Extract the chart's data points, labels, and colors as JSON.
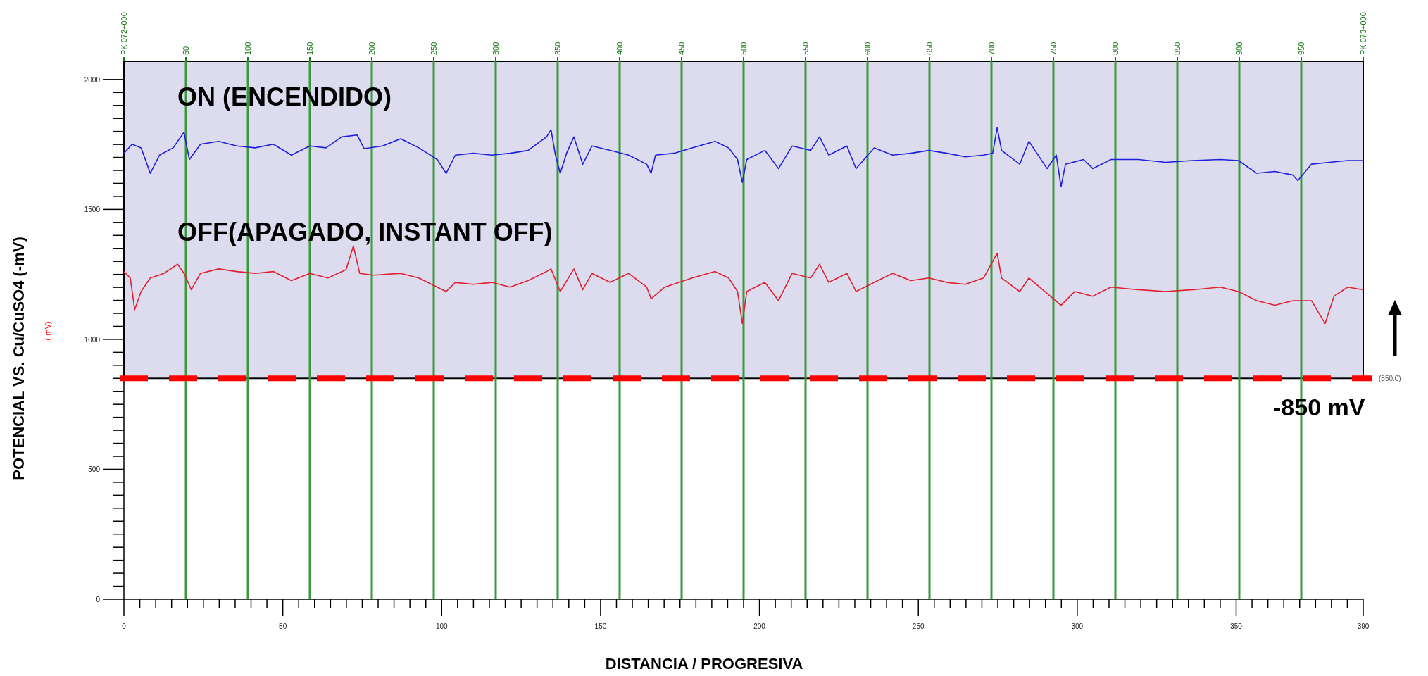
{
  "chart_data": {
    "type": "line",
    "xlabel": "DISTANCIA / PROGRESIVA",
    "ylabel": "POTENCIAL VS. Cu/CuSO4 (-mV)",
    "xlim": [
      0,
      390
    ],
    "ylim": [
      0,
      2070
    ],
    "xticks": [
      0,
      {
        "value": 5,
        "label": null
      },
      {
        "value": 10,
        "label": null
      },
      {
        "value": 15,
        "label": null
      },
      {
        "value": 20,
        "label": null
      },
      {
        "value": 25,
        "label": null
      },
      {
        "value": 30,
        "label": null
      },
      {
        "value": 35,
        "label": null
      },
      {
        "value": 40,
        "label": null
      },
      {
        "value": 45,
        "label": null
      },
      50,
      {
        "value": 55,
        "label": null
      },
      {
        "value": 60,
        "label": null
      },
      {
        "value": 65,
        "label": null
      },
      {
        "value": 70,
        "label": null
      },
      {
        "value": 75,
        "label": null
      },
      {
        "value": 80,
        "label": null
      },
      {
        "value": 85,
        "label": null
      },
      {
        "value": 90,
        "label": null
      },
      {
        "value": 95,
        "label": null
      },
      100,
      {
        "value": 105,
        "label": null
      },
      {
        "value": 110,
        "label": null
      },
      {
        "value": 115,
        "label": null
      },
      {
        "value": 120,
        "label": null
      },
      {
        "value": 125,
        "label": null
      },
      {
        "value": 130,
        "label": null
      },
      {
        "value": 135,
        "label": null
      },
      {
        "value": 140,
        "label": null
      },
      {
        "value": 145,
        "label": null
      },
      150,
      {
        "value": 155,
        "label": null
      },
      {
        "value": 160,
        "label": null
      },
      {
        "value": 165,
        "label": null
      },
      {
        "value": 170,
        "label": null
      },
      {
        "value": 175,
        "label": null
      },
      {
        "value": 180,
        "label": null
      },
      {
        "value": 185,
        "label": null
      },
      {
        "value": 190,
        "label": null
      },
      {
        "value": 195,
        "label": null
      },
      200,
      {
        "value": 205,
        "label": null
      },
      {
        "value": 210,
        "label": null
      },
      {
        "value": 215,
        "label": null
      },
      {
        "value": 220,
        "label": null
      },
      {
        "value": 225,
        "label": null
      },
      {
        "value": 230,
        "label": null
      },
      {
        "value": 235,
        "label": null
      },
      {
        "value": 240,
        "label": null
      },
      {
        "value": 245,
        "label": null
      },
      250,
      {
        "value": 255,
        "label": null
      },
      {
        "value": 260,
        "label": null
      },
      {
        "value": 265,
        "label": null
      },
      {
        "value": 270,
        "label": null
      },
      {
        "value": 275,
        "label": null
      },
      {
        "value": 280,
        "label": null
      },
      {
        "value": 285,
        "label": null
      },
      {
        "value": 290,
        "label": null
      },
      {
        "value": 295,
        "label": null
      },
      300,
      {
        "value": 305,
        "label": null
      },
      {
        "value": 310,
        "label": null
      },
      {
        "value": 315,
        "label": null
      },
      {
        "value": 320,
        "label": null
      },
      {
        "value": 325,
        "label": null
      },
      {
        "value": 330,
        "label": null
      },
      {
        "value": 335,
        "label": null
      },
      {
        "value": 340,
        "label": null
      },
      {
        "value": 345,
        "label": null
      },
      350,
      {
        "value": 355,
        "label": null
      },
      {
        "value": 360,
        "label": null
      },
      {
        "value": 365,
        "label": null
      },
      {
        "value": 370,
        "label": null
      },
      {
        "value": 375,
        "label": null
      },
      {
        "value": 380,
        "label": null
      },
      {
        "value": 385,
        "label": null
      },
      390
    ],
    "yticks": [
      0,
      {
        "value": 50,
        "label": null
      },
      {
        "value": 100,
        "label": null
      },
      {
        "value": 150,
        "label": null
      },
      {
        "value": 200,
        "label": null
      },
      {
        "value": 250,
        "label": null
      },
      {
        "value": 300,
        "label": null
      },
      {
        "value": 350,
        "label": null
      },
      {
        "value": 400,
        "label": null
      },
      {
        "value": 450,
        "label": null
      },
      500,
      {
        "value": 550,
        "label": null
      },
      {
        "value": 600,
        "label": null
      },
      {
        "value": 650,
        "label": null
      },
      {
        "value": 700,
        "label": null
      },
      {
        "value": 750,
        "label": null
      },
      {
        "value": 800,
        "label": null
      },
      {
        "value": 850,
        "label": null
      },
      {
        "value": 900,
        "label": null
      },
      {
        "value": 950,
        "label": null
      },
      1000,
      {
        "value": 1050,
        "label": null
      },
      {
        "value": 1100,
        "label": null
      },
      {
        "value": 1150,
        "label": null
      },
      {
        "value": 1200,
        "label": null
      },
      {
        "value": 1250,
        "label": null
      },
      {
        "value": 1300,
        "label": null
      },
      {
        "value": 1350,
        "label": null
      },
      {
        "value": 1400,
        "label": null
      },
      {
        "value": 1450,
        "label": null
      },
      1500,
      {
        "value": 1550,
        "label": null
      },
      {
        "value": 1600,
        "label": null
      },
      {
        "value": 1650,
        "label": null
      },
      {
        "value": 1700,
        "label": null
      },
      {
        "value": 1750,
        "label": null
      },
      {
        "value": 1800,
        "label": null
      },
      {
        "value": 1850,
        "label": null
      },
      {
        "value": 1900,
        "label": null
      },
      {
        "value": 1950,
        "label": null
      },
      2000
    ],
    "grid": false,
    "bands": [
      {
        "axis": "y",
        "from": 850,
        "to": 2070,
        "color": "#dcdcee"
      }
    ],
    "ref_lines": [
      {
        "axis": "y",
        "value": 850,
        "label": "(850.0)",
        "color": "#ff0000",
        "line_style": "dashed"
      },
      {
        "axis": "x2",
        "value": 50,
        "color": "#3a9a3a"
      },
      {
        "axis": "x2",
        "value": 100,
        "color": "#3a9a3a"
      },
      {
        "axis": "x2",
        "value": 150,
        "color": "#3a9a3a"
      },
      {
        "axis": "x2",
        "value": 200,
        "color": "#3a9a3a"
      },
      {
        "axis": "x2",
        "value": 250,
        "color": "#3a9a3a"
      },
      {
        "axis": "x2",
        "value": 300,
        "color": "#3a9a3a"
      },
      {
        "axis": "x2",
        "value": 350,
        "color": "#3a9a3a"
      },
      {
        "axis": "x2",
        "value": 400,
        "color": "#3a9a3a"
      },
      {
        "axis": "x2",
        "value": 450,
        "color": "#3a9a3a"
      },
      {
        "axis": "x2",
        "value": 500,
        "color": "#3a9a3a"
      },
      {
        "axis": "x2",
        "value": 550,
        "color": "#3a9a3a"
      },
      {
        "axis": "x2",
        "value": 600,
        "color": "#3a9a3a"
      },
      {
        "axis": "x2",
        "value": 650,
        "color": "#3a9a3a"
      },
      {
        "axis": "x2",
        "value": 700,
        "color": "#3a9a3a"
      },
      {
        "axis": "x2",
        "value": 750,
        "color": "#3a9a3a"
      },
      {
        "axis": "x2",
        "value": 800,
        "color": "#3a9a3a"
      },
      {
        "axis": "x2",
        "value": 850,
        "color": "#3a9a3a"
      },
      {
        "axis": "x2",
        "value": 900,
        "color": "#3a9a3a"
      },
      {
        "axis": "x2",
        "value": 950,
        "color": "#3a9a3a",
        "line_style": "solid"
      }
    ],
    "x2lim": [
      0,
      1000
    ],
    "x2ticks": [
      {
        "value": 0,
        "label": "PK 072+000"
      },
      50,
      100,
      150,
      200,
      250,
      300,
      350,
      400,
      450,
      500,
      550,
      600,
      650,
      700,
      750,
      800,
      850,
      900,
      950,
      {
        "value": 1000,
        "label": "PK 073+000"
      }
    ],
    "annotations": [
      "-850 mV",
      "(-mV)",
      "ON (ENCENDIDO)",
      "OFF(APAGADO, INSTANT OFF)"
    ],
    "series": [
      {
        "color": "#1f1fdd",
        "x": [
          0,
          2.6,
          5.4,
          8.3,
          11.2,
          15.5,
          18.9,
          20.6,
          24.1,
          29.8,
          35.5,
          41.3,
          47.0,
          52.7,
          58.5,
          63.6,
          68.5,
          73.4,
          75.6,
          81.4,
          87.1,
          92.8,
          98.6,
          101.4,
          104.3,
          110.0,
          115.8,
          121.5,
          127.2,
          133.0,
          134.4,
          135.8,
          137.3,
          139.3,
          141.6,
          144.4,
          147.3,
          153.0,
          158.8,
          164.5,
          165.9,
          167.3,
          173.1,
          178.8,
          186.0,
          190.3,
          193.1,
          194.6,
          196.0,
          201.7,
          206.0,
          210.3,
          216.1,
          218.9,
          221.8,
          227.5,
          230.4,
          236.1,
          241.9,
          247.6,
          253.3,
          259.0,
          264.8,
          270.5,
          273.4,
          274.8,
          276.2,
          281.9,
          284.8,
          290.5,
          293.4,
          294.9,
          296.3,
          302.0,
          304.9,
          310.6,
          319.2,
          327.8,
          336.4,
          345.0,
          350.7,
          356.5,
          362.2,
          367.9,
          369.4,
          373.7,
          379.4,
          385.1,
          390
        ],
        "values": [
          1716,
          1751,
          1737,
          1639,
          1709,
          1737,
          1797,
          1692,
          1751,
          1762,
          1744,
          1737,
          1751,
          1709,
          1744,
          1737,
          1779,
          1786,
          1734,
          1744,
          1772,
          1737,
          1692,
          1639,
          1709,
          1716,
          1709,
          1716,
          1727,
          1779,
          1807,
          1709,
          1639,
          1716,
          1779,
          1674,
          1744,
          1727,
          1709,
          1674,
          1639,
          1709,
          1716,
          1737,
          1762,
          1737,
          1692,
          1604,
          1692,
          1727,
          1657,
          1744,
          1727,
          1779,
          1709,
          1744,
          1657,
          1737,
          1709,
          1716,
          1727,
          1716,
          1702,
          1709,
          1716,
          1814,
          1727,
          1674,
          1762,
          1657,
          1709,
          1587,
          1674,
          1692,
          1657,
          1692,
          1692,
          1681,
          1688,
          1692,
          1688,
          1639,
          1646,
          1632,
          1611,
          1674,
          1681,
          1688,
          1688
        ]
      },
      {
        "color": "#e02030",
        "x": [
          0,
          2.0,
          3.4,
          5.4,
          8.3,
          12.6,
          16.9,
          18.9,
          21.2,
          24.1,
          29.8,
          35.5,
          41.3,
          47.0,
          52.7,
          58.5,
          64.2,
          69.9,
          72.2,
          74.2,
          78.5,
          87.1,
          92.8,
          98.6,
          101.4,
          104.3,
          110.0,
          115.8,
          121.5,
          127.2,
          133.0,
          134.4,
          137.3,
          141.6,
          144.4,
          147.3,
          153.0,
          158.8,
          164.5,
          165.9,
          170.2,
          178.8,
          186.0,
          190.3,
          193.1,
          194.6,
          196.0,
          201.7,
          206.0,
          210.3,
          216.1,
          218.9,
          221.8,
          227.5,
          230.4,
          236.1,
          241.9,
          247.6,
          253.3,
          259.0,
          264.8,
          270.5,
          274.8,
          276.2,
          281.9,
          284.8,
          290.5,
          294.9,
          299.2,
          304.9,
          310.6,
          319.2,
          327.8,
          336.4,
          345.0,
          350.7,
          356.5,
          362.2,
          367.9,
          373.7,
          378.0,
          380.8,
          385.1,
          390
        ],
        "values": [
          1261,
          1236,
          1114,
          1184,
          1236,
          1254,
          1289,
          1254,
          1191,
          1254,
          1271,
          1261,
          1254,
          1261,
          1226,
          1254,
          1236,
          1268,
          1359,
          1254,
          1247,
          1254,
          1236,
          1201,
          1184,
          1219,
          1212,
          1219,
          1201,
          1226,
          1261,
          1271,
          1184,
          1271,
          1191,
          1254,
          1219,
          1254,
          1201,
          1156,
          1201,
          1236,
          1261,
          1236,
          1184,
          1061,
          1184,
          1219,
          1149,
          1254,
          1236,
          1289,
          1219,
          1254,
          1184,
          1219,
          1254,
          1226,
          1236,
          1219,
          1212,
          1236,
          1331,
          1236,
          1184,
          1236,
          1177,
          1131,
          1184,
          1166,
          1201,
          1191,
          1184,
          1191,
          1201,
          1184,
          1149,
          1131,
          1149,
          1149,
          1061,
          1166,
          1201,
          1191
        ]
      }
    ]
  }
}
